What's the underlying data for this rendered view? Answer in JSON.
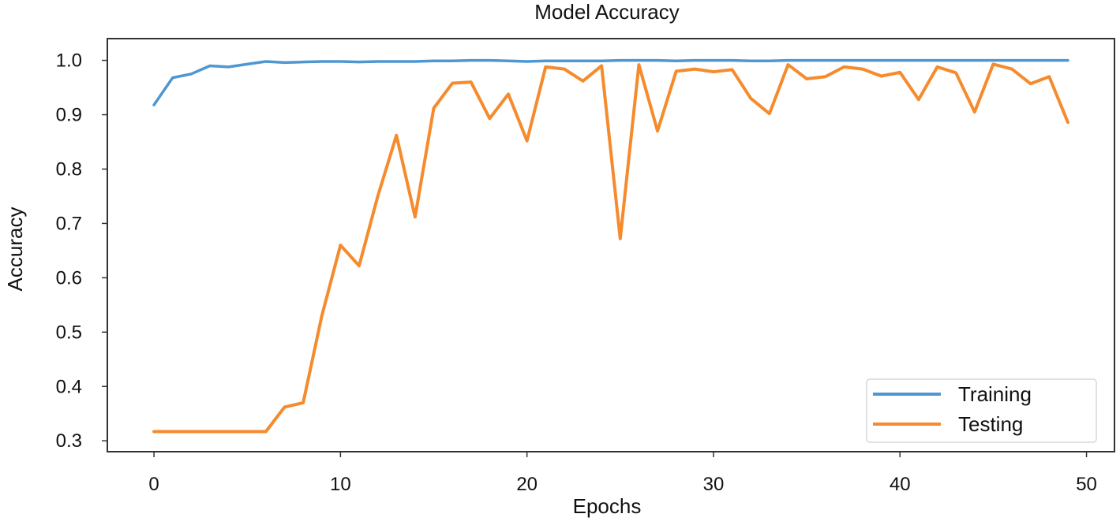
{
  "chart_data": {
    "type": "line",
    "title": "Model Accuracy",
    "xlabel": "Epochs",
    "ylabel": "Accuracy",
    "xlim": [
      -2.5,
      51.5
    ],
    "ylim": [
      0.28,
      1.04
    ],
    "x_ticks": [
      0,
      10,
      20,
      30,
      40,
      50
    ],
    "x_tick_labels": [
      "0",
      "10",
      "20",
      "30",
      "40",
      "50"
    ],
    "y_ticks": [
      0.3,
      0.4,
      0.5,
      0.6,
      0.7,
      0.8,
      0.9,
      1.0
    ],
    "y_tick_labels": [
      "0.3",
      "0.4",
      "0.5",
      "0.6",
      "0.7",
      "0.8",
      "0.9",
      "1.0"
    ],
    "grid": false,
    "legend_position": "bottom-right",
    "x": [
      0,
      1,
      2,
      3,
      4,
      5,
      6,
      7,
      8,
      9,
      10,
      11,
      12,
      13,
      14,
      15,
      16,
      17,
      18,
      19,
      20,
      21,
      22,
      23,
      24,
      25,
      26,
      27,
      28,
      29,
      30,
      31,
      32,
      33,
      34,
      35,
      36,
      37,
      38,
      39,
      40,
      41,
      42,
      43,
      44,
      45,
      46,
      47,
      48,
      49
    ],
    "series": [
      {
        "name": "Training",
        "color": "#4f97d0",
        "values": [
          0.918,
          0.968,
          0.975,
          0.99,
          0.988,
          0.993,
          0.998,
          0.996,
          0.997,
          0.998,
          0.998,
          0.997,
          0.998,
          0.998,
          0.998,
          0.999,
          0.999,
          1.0,
          1.0,
          0.999,
          0.998,
          0.999,
          0.999,
          0.999,
          0.999,
          1.0,
          1.0,
          1.0,
          0.999,
          1.0,
          1.0,
          1.0,
          0.999,
          0.999,
          1.0,
          1.0,
          1.0,
          1.0,
          1.0,
          1.0,
          1.0,
          1.0,
          1.0,
          1.0,
          1.0,
          1.0,
          1.0,
          1.0,
          1.0,
          1.0
        ]
      },
      {
        "name": "Testing",
        "color": "#f58b2c",
        "values": [
          0.317,
          0.317,
          0.317,
          0.317,
          0.317,
          0.317,
          0.317,
          0.362,
          0.37,
          0.53,
          0.66,
          0.622,
          0.75,
          0.862,
          0.712,
          0.912,
          0.958,
          0.96,
          0.893,
          0.938,
          0.852,
          0.988,
          0.984,
          0.962,
          0.99,
          0.672,
          0.992,
          0.87,
          0.98,
          0.984,
          0.979,
          0.983,
          0.93,
          0.902,
          0.992,
          0.966,
          0.97,
          0.988,
          0.984,
          0.971,
          0.978,
          0.928,
          0.988,
          0.977,
          0.905,
          0.993,
          0.984,
          0.957,
          0.97,
          0.886
        ]
      }
    ]
  },
  "theme": {
    "axis_color": "#333333",
    "text_color": "#111111",
    "legend_border_color": "#d9d9d9"
  }
}
